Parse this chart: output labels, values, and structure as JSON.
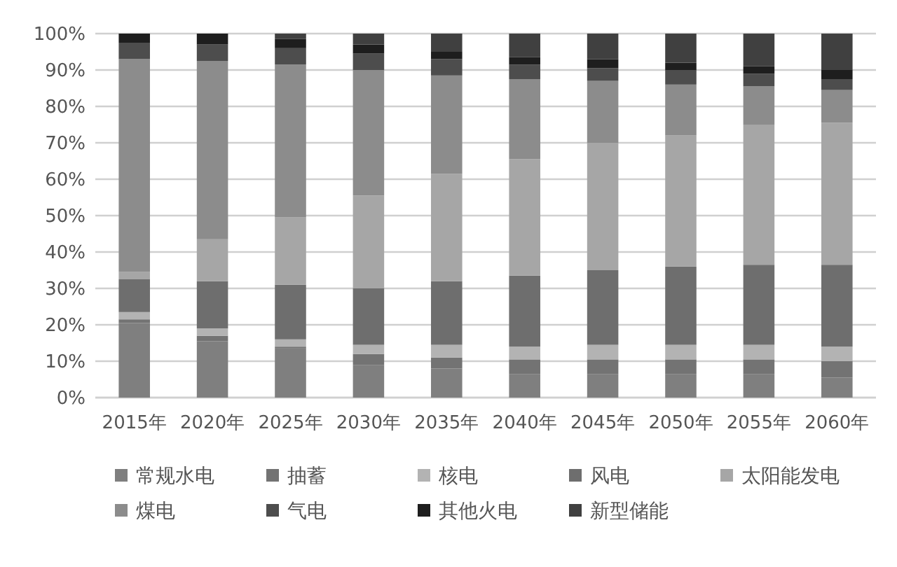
{
  "chart_data": {
    "type": "bar",
    "stacked": true,
    "categories": [
      "2015年",
      "2020年",
      "2025年",
      "2030年",
      "2035年",
      "2040年",
      "2045年",
      "2050年",
      "2055年",
      "2060年"
    ],
    "ylim": [
      0,
      100
    ],
    "yticks": [
      {
        "value": 0,
        "label": "0%"
      },
      {
        "value": 10,
        "label": "10%"
      },
      {
        "value": 20,
        "label": "20%"
      },
      {
        "value": 30,
        "label": "30%"
      },
      {
        "value": 40,
        "label": "40%"
      },
      {
        "value": 50,
        "label": "50%"
      },
      {
        "value": 60,
        "label": "60%"
      },
      {
        "value": 70,
        "label": "70%"
      },
      {
        "value": 80,
        "label": "80%"
      },
      {
        "value": 90,
        "label": "90%"
      },
      {
        "value": 100,
        "label": "100%"
      }
    ],
    "grid": "y",
    "legend": "bottom",
    "series": [
      {
        "name": "常规水电",
        "color": "#7f7f7f",
        "values": [
          20.5,
          15.5,
          13.5,
          9,
          8,
          6.5,
          6.5,
          6.5,
          6.5,
          5.5
        ]
      },
      {
        "name": "抽蓄",
        "color": "#737373",
        "values": [
          1,
          1.5,
          0.5,
          3,
          3,
          4,
          4,
          4,
          4,
          4.5
        ]
      },
      {
        "name": "核电",
        "color": "#b3b3b3",
        "values": [
          2,
          2,
          2,
          2.5,
          3.5,
          3.5,
          4,
          4,
          4,
          4
        ]
      },
      {
        "name": "风电",
        "color": "#6e6e6e",
        "values": [
          9,
          13,
          15,
          15.5,
          17.5,
          19.5,
          20.5,
          21.5,
          22,
          22.5
        ]
      },
      {
        "name": "太阳能发电",
        "color": "#a6a6a6",
        "values": [
          2,
          11.5,
          18.5,
          25.5,
          29.5,
          32,
          35,
          36,
          38.5,
          39
        ]
      },
      {
        "name": "煤电",
        "color": "#8c8c8c",
        "values": [
          58.5,
          49,
          42,
          34.5,
          27,
          22,
          17,
          14,
          10.5,
          9
        ]
      },
      {
        "name": "气电",
        "color": "#4d4d4d",
        "values": [
          4.5,
          4.5,
          4.5,
          4.5,
          4.5,
          4,
          3.5,
          4,
          3.5,
          3
        ]
      },
      {
        "name": "其他火电",
        "color": "#1e1e1e",
        "values": [
          2.5,
          3,
          2.5,
          2.5,
          2,
          2,
          2.5,
          2,
          2,
          2.5
        ]
      },
      {
        "name": "新型储能",
        "color": "#404040",
        "values": [
          0,
          0,
          1.5,
          3,
          5,
          6.5,
          7,
          8,
          9,
          10
        ]
      }
    ]
  }
}
